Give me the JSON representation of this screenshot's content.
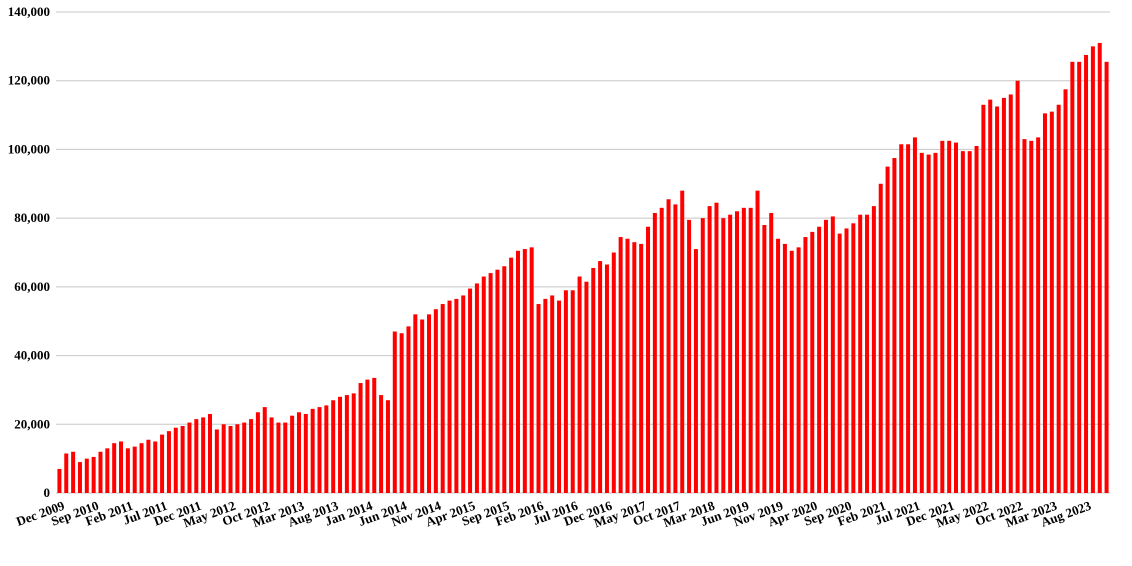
{
  "chart_data": {
    "type": "bar",
    "color": "#ff0000",
    "grid": true,
    "ylim": [
      0,
      140000
    ],
    "yticks": [
      0,
      {
        "value": 20000,
        "label": "20,000"
      },
      {
        "value": 40000,
        "label": "40,000"
      },
      {
        "value": 60000,
        "label": "60,000"
      },
      {
        "value": 80000,
        "label": "80,000"
      },
      {
        "value": 100000,
        "label": "100,000"
      },
      {
        "value": 120000,
        "label": "120,000"
      },
      {
        "value": 140000,
        "label": "140,000"
      }
    ],
    "categories": [
      "Dec 2009",
      null,
      null,
      null,
      null,
      "Sep 2010",
      null,
      null,
      null,
      null,
      "Feb 2011",
      null,
      null,
      null,
      null,
      "Jul 2011",
      null,
      null,
      null,
      null,
      "Dec 2011",
      null,
      null,
      null,
      null,
      "May 2012",
      null,
      null,
      null,
      null,
      "Oct 2012",
      null,
      null,
      null,
      null,
      "Mar 2013",
      null,
      null,
      null,
      null,
      "Aug 2013",
      null,
      null,
      null,
      null,
      "Jan 2014",
      null,
      null,
      null,
      null,
      "Jun 2014",
      null,
      null,
      null,
      null,
      "Nov 2014",
      null,
      null,
      null,
      null,
      "Apr 2015",
      null,
      null,
      null,
      null,
      "Sep 2015",
      null,
      null,
      null,
      null,
      "Feb 2016",
      null,
      null,
      null,
      null,
      "Jul 2016",
      null,
      null,
      null,
      null,
      "Dec 2016",
      null,
      null,
      null,
      null,
      "May 2017",
      null,
      null,
      null,
      null,
      "Oct 2017",
      null,
      null,
      null,
      null,
      "Mar 2018",
      null,
      null,
      null,
      null,
      "Jun 2019",
      null,
      null,
      null,
      null,
      "Nov 2019",
      null,
      null,
      null,
      null,
      "Apr 2020",
      null,
      null,
      null,
      null,
      "Sep 2020",
      null,
      null,
      null,
      null,
      "Feb 2021",
      null,
      null,
      null,
      null,
      "Jul 2021",
      null,
      null,
      null,
      null,
      "Dec 2021",
      null,
      null,
      null,
      null,
      "May 2022",
      null,
      null,
      null,
      null,
      "Oct 2022",
      null,
      null,
      null,
      null,
      "Mar 2023",
      null,
      null,
      null,
      null,
      "Aug 2023",
      null,
      null,
      null
    ],
    "values": [
      7000,
      11500,
      12000,
      9000,
      10000,
      10500,
      12000,
      13000,
      14500,
      15000,
      13000,
      13500,
      14500,
      15500,
      15000,
      17000,
      18000,
      19000,
      19500,
      20500,
      21500,
      22000,
      23000,
      18500,
      20000,
      19500,
      20000,
      20500,
      21500,
      23500,
      25000,
      22000,
      20500,
      20500,
      22500,
      23500,
      23000,
      24500,
      25000,
      25500,
      27000,
      28000,
      28500,
      29000,
      32000,
      33000,
      33500,
      28500,
      27000,
      47000,
      46500,
      48500,
      52000,
      50500,
      52000,
      53500,
      55000,
      56000,
      56500,
      57500,
      59500,
      61000,
      63000,
      64000,
      65000,
      66000,
      68500,
      70500,
      71000,
      71500,
      55000,
      56500,
      57500,
      56000,
      59000,
      59000,
      63000,
      61500,
      65500,
      67500,
      66500,
      70000,
      74500,
      74000,
      73000,
      72500,
      77500,
      81500,
      83000,
      85500,
      84000,
      88000,
      79500,
      71000,
      80000,
      83500,
      84500,
      80000,
      81000,
      82000,
      83000,
      83000,
      88000,
      78000,
      81500,
      74000,
      72500,
      70500,
      71500,
      74500,
      76000,
      77500,
      79500,
      80500,
      75500,
      77000,
      78500,
      81000,
      81000,
      83500,
      90000,
      95000,
      97500,
      101500,
      101500,
      103500,
      99000,
      98500,
      99000,
      102500,
      102500,
      102000,
      99500,
      99500,
      101000,
      113000,
      114500,
      112500,
      115000,
      116000,
      120000,
      103000,
      102500,
      103500,
      110500,
      111000,
      113000,
      117500,
      125500,
      125500,
      127500,
      130000,
      131000,
      125500
    ]
  }
}
